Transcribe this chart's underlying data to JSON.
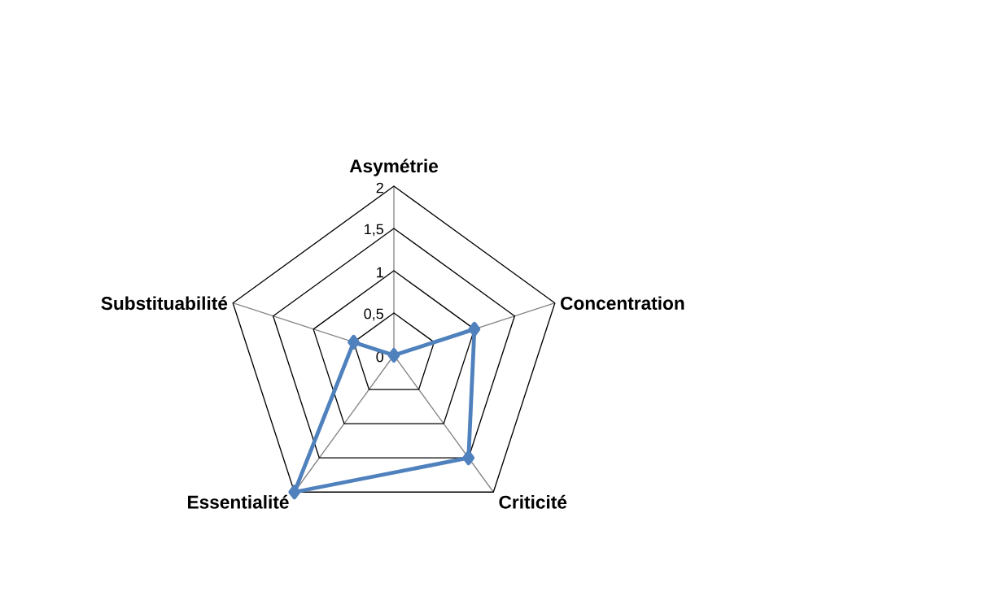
{
  "chart_data": {
    "type": "radar",
    "categories": [
      "Asymétrie",
      "Concentration",
      "Criticité",
      "Essentialité",
      "Substituabilité"
    ],
    "series": [
      {
        "color": "#4f81bd",
        "values": [
          0,
          1,
          1.5,
          2,
          0.5
        ]
      }
    ],
    "ylim": [
      0,
      2
    ],
    "yticks": [
      0,
      {
        "value": 0.5,
        "label": "0,5"
      },
      1,
      {
        "value": 1.5,
        "label": "1,5"
      },
      2
    ],
    "grid": true,
    "marker": "diamond",
    "line_style": "solid"
  }
}
